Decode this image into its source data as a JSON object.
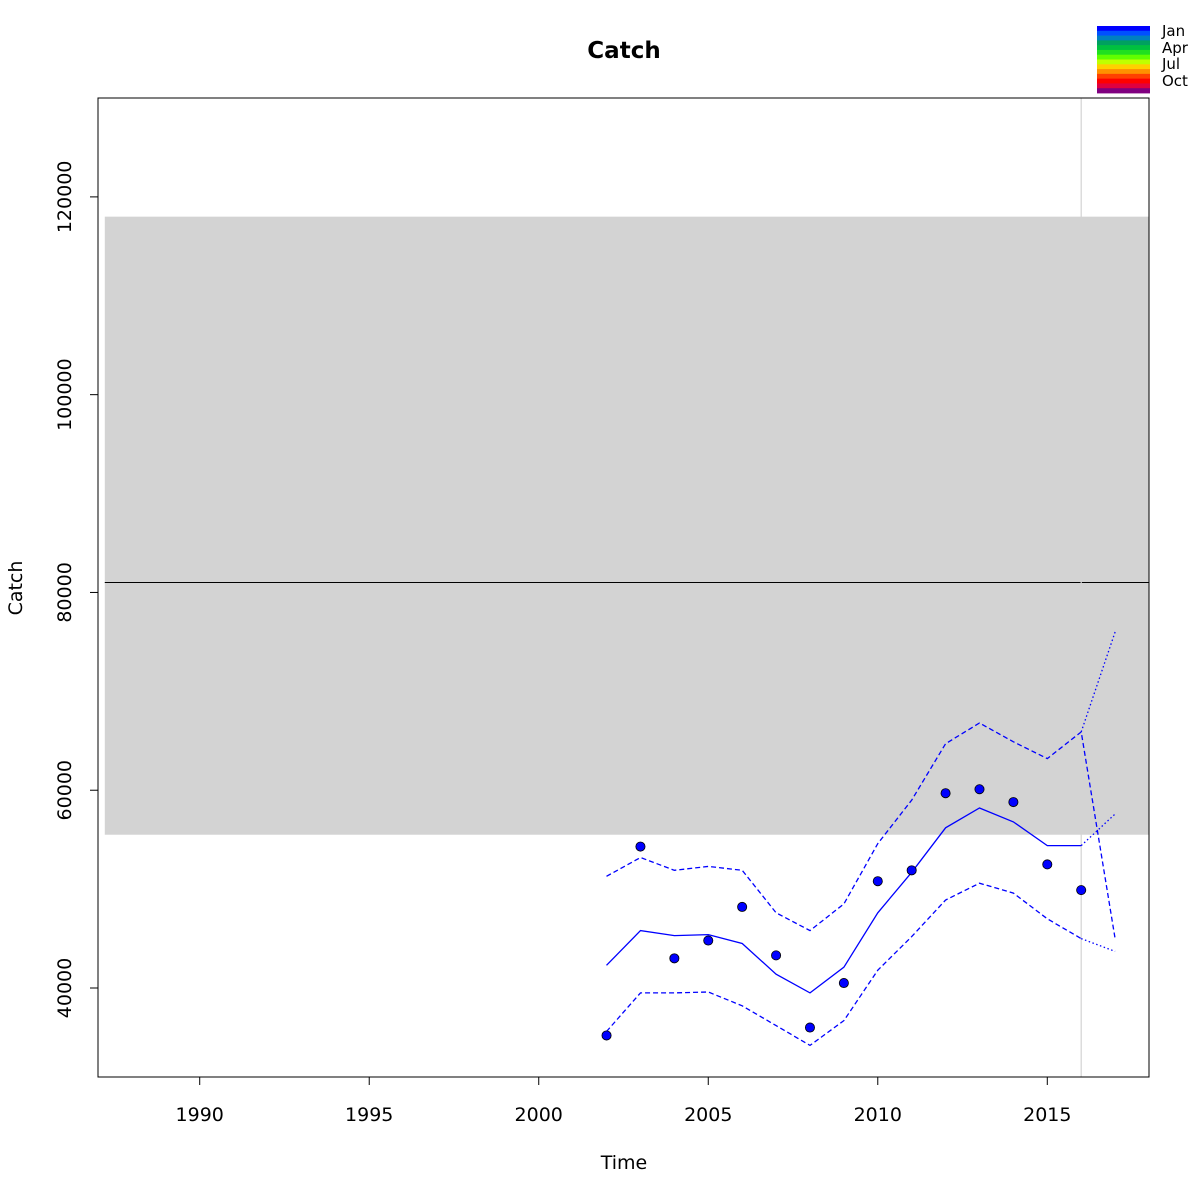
{
  "chart_data": {
    "type": "line",
    "title": "Catch",
    "xlabel": "Time",
    "ylabel": "Catch",
    "xlim": [
      1987,
      2018
    ],
    "ylim": [
      31000,
      130000
    ],
    "x_ticks": [
      1990,
      1995,
      2000,
      2005,
      2010,
      2015
    ],
    "y_ticks": [
      40000,
      60000,
      80000,
      100000,
      120000
    ],
    "grid": false,
    "reference_band": {
      "x": [
        1987.2,
        2018
      ],
      "y": [
        55500,
        118000
      ],
      "color": "#d3d3d3"
    },
    "reference_line": {
      "y": 81000,
      "color": "#000000"
    },
    "vertical_marker": {
      "x": 2016,
      "color": "#d3d3d3"
    },
    "observed": {
      "color": "#0000ff",
      "x": [
        2002,
        2003,
        2004,
        2005,
        2006,
        2007,
        2008,
        2009,
        2010,
        2011,
        2012,
        2013,
        2014,
        2015,
        2016
      ],
      "y": [
        35200,
        54300,
        43000,
        44800,
        48200,
        43300,
        36000,
        40500,
        50800,
        51900,
        59700,
        60100,
        58800,
        52500,
        49900
      ]
    },
    "series": [
      {
        "style": "solid",
        "color": "#0000ff",
        "x": [
          2002,
          2003,
          2004,
          2005,
          2006,
          2007,
          2008,
          2009,
          2010,
          2011,
          2012,
          2013,
          2014,
          2015,
          2016
        ],
        "y": [
          42300,
          45800,
          45300,
          45400,
          44500,
          41400,
          39500,
          42100,
          47600,
          51700,
          56200,
          58200,
          56800,
          54400,
          54400
        ]
      },
      {
        "style": "dashed",
        "color": "#0000ff",
        "x": [
          2002,
          2003,
          2004,
          2005,
          2006,
          2007,
          2008,
          2009,
          2010,
          2011,
          2012,
          2013,
          2014,
          2015,
          2016,
          2017
        ],
        "y": [
          51300,
          53200,
          51900,
          52300,
          51900,
          47600,
          45800,
          48500,
          54600,
          59000,
          64700,
          66800,
          64900,
          63200,
          65900,
          45000
        ]
      },
      {
        "style": "dashed",
        "color": "#0000ff",
        "x": [
          2002,
          2003,
          2004,
          2005,
          2006,
          2007,
          2008,
          2009,
          2010,
          2011,
          2012,
          2013,
          2014,
          2015,
          2016
        ],
        "y": [
          35600,
          39500,
          39500,
          39600,
          38200,
          36200,
          34200,
          36700,
          41800,
          45200,
          48900,
          50600,
          49600,
          47000,
          45000
        ]
      },
      {
        "style": "dotted",
        "color": "#0000ff",
        "x": [
          2016,
          2017
        ],
        "y": [
          54400,
          57600
        ]
      },
      {
        "style": "dotted",
        "color": "#0000ff",
        "x": [
          2016,
          2017
        ],
        "y": [
          65900,
          76000
        ]
      },
      {
        "style": "dotted",
        "color": "#0000ff",
        "x": [
          2016,
          2017
        ],
        "y": [
          45000,
          43700
        ]
      }
    ],
    "legend": {
      "position": "top-right",
      "labels": [
        "Jan",
        "Apr",
        "Jul",
        "Oct"
      ],
      "colors": [
        "#0000ff",
        "#0050ff",
        "#0080c0",
        "#00a060",
        "#00c040",
        "#20e020",
        "#60ff00",
        "#c0ff00",
        "#ffd000",
        "#ff9000",
        "#ff4000",
        "#ff0000",
        "#e00040",
        "#800080"
      ]
    }
  }
}
